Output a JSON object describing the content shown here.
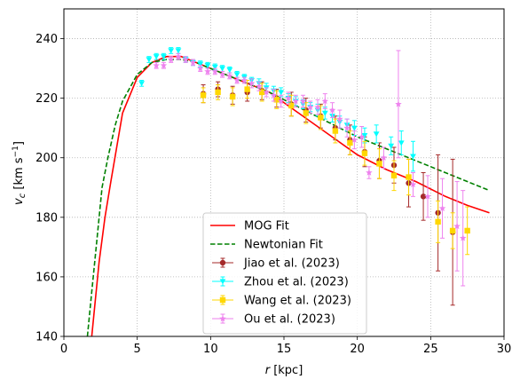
{
  "chart_data": {
    "type": "scatter",
    "title": "",
    "xlabel": "r [kpc]",
    "ylabel": "v_c [km s^-1]",
    "xlim": [
      0,
      30
    ],
    "ylim": [
      140,
      250
    ],
    "xticks": [
      0,
      5,
      10,
      15,
      20,
      25,
      30
    ],
    "yticks": [
      140,
      160,
      180,
      200,
      220,
      240
    ],
    "grid": true,
    "legend_position": "lower-center",
    "curves": [
      {
        "name": "MOG Fit",
        "color": "#ff0000",
        "style": "solid",
        "x": [
          1.9,
          2.1,
          2.4,
          2.8,
          3.2,
          4.0,
          5.0,
          6.0,
          7.0,
          8.0,
          9.0,
          10.0,
          12.0,
          14.0,
          16.0,
          18.0,
          20.0,
          22.0,
          24.0,
          26.0,
          27.5,
          29.0
        ],
        "y": [
          140,
          150,
          165,
          180,
          192,
          215,
          227,
          232,
          234,
          234,
          232,
          230,
          226,
          222,
          215,
          208,
          201,
          196,
          192,
          187,
          184,
          181.5
        ]
      },
      {
        "name": "Newtonian Fit",
        "color": "#008000",
        "style": "dashed",
        "x": [
          1.6,
          1.9,
          2.2,
          2.6,
          3.0,
          3.5,
          4.0,
          5.0,
          6.0,
          7.0,
          8.0,
          9.0,
          10.0,
          12.0,
          14.0,
          16.0,
          18.0,
          20.0,
          22.0,
          24.0,
          26.0,
          28.0,
          29.0
        ],
        "y": [
          140,
          155,
          170,
          190,
          200,
          211,
          219,
          228,
          232,
          233,
          233,
          232,
          230,
          226,
          222,
          217,
          212,
          207,
          203,
          199,
          195,
          191,
          189
        ]
      }
    ],
    "series": [
      {
        "name": "Jiao et al. (2023)",
        "color": "#a52a2a",
        "marker": "circle",
        "points": [
          {
            "x": 9.5,
            "y": 221.5,
            "err": 3
          },
          {
            "x": 10.5,
            "y": 223,
            "err": 2.5
          },
          {
            "x": 11.5,
            "y": 221,
            "err": 3
          },
          {
            "x": 12.5,
            "y": 222,
            "err": 3
          },
          {
            "x": 13.5,
            "y": 222.5,
            "err": 3
          },
          {
            "x": 14.5,
            "y": 220,
            "err": 3
          },
          {
            "x": 15.5,
            "y": 218,
            "err": 4
          },
          {
            "x": 16.5,
            "y": 216,
            "err": 4
          },
          {
            "x": 17.5,
            "y": 214,
            "err": 4
          },
          {
            "x": 18.5,
            "y": 210,
            "err": 4
          },
          {
            "x": 19.5,
            "y": 206,
            "err": 5
          },
          {
            "x": 20.5,
            "y": 202,
            "err": 5
          },
          {
            "x": 21.5,
            "y": 199,
            "err": 6
          },
          {
            "x": 22.5,
            "y": 197.5,
            "err": 6
          },
          {
            "x": 23.5,
            "y": 191.5,
            "err": 8
          },
          {
            "x": 24.5,
            "y": 187,
            "err": 8
          },
          {
            "x": 25.5,
            "y": 181.5,
            "err": 19.5
          },
          {
            "x": 26.5,
            "y": 175,
            "err": 24.5
          }
        ]
      },
      {
        "name": "Zhou et al. (2023)",
        "color": "#00ffff",
        "marker": "triangle-down",
        "points": [
          {
            "x": 5.3,
            "y": 225,
            "err": 1
          },
          {
            "x": 5.8,
            "y": 233,
            "err": 1
          },
          {
            "x": 6.3,
            "y": 234,
            "err": 1
          },
          {
            "x": 6.8,
            "y": 234,
            "err": 1
          },
          {
            "x": 7.3,
            "y": 236,
            "err": 1
          },
          {
            "x": 7.8,
            "y": 236,
            "err": 1
          },
          {
            "x": 8.3,
            "y": 233,
            "err": 1
          },
          {
            "x": 8.8,
            "y": 232,
            "err": 1
          },
          {
            "x": 9.3,
            "y": 231.5,
            "err": 1
          },
          {
            "x": 9.8,
            "y": 231,
            "err": 1
          },
          {
            "x": 10.3,
            "y": 230.5,
            "err": 1
          },
          {
            "x": 10.8,
            "y": 230,
            "err": 1
          },
          {
            "x": 11.3,
            "y": 229.5,
            "err": 1
          },
          {
            "x": 11.8,
            "y": 228,
            "err": 1
          },
          {
            "x": 12.3,
            "y": 227,
            "err": 1
          },
          {
            "x": 12.8,
            "y": 226,
            "err": 1
          },
          {
            "x": 13.3,
            "y": 225,
            "err": 1.5
          },
          {
            "x": 13.8,
            "y": 223.5,
            "err": 1.5
          },
          {
            "x": 14.3,
            "y": 222.5,
            "err": 1.5
          },
          {
            "x": 14.8,
            "y": 222,
            "err": 1.5
          },
          {
            "x": 15.3,
            "y": 220,
            "err": 1.5
          },
          {
            "x": 15.8,
            "y": 219,
            "err": 1.5
          },
          {
            "x": 16.3,
            "y": 218,
            "err": 1.5
          },
          {
            "x": 16.8,
            "y": 217,
            "err": 1.5
          },
          {
            "x": 17.3,
            "y": 216,
            "err": 2
          },
          {
            "x": 17.8,
            "y": 215,
            "err": 2
          },
          {
            "x": 18.3,
            "y": 214,
            "err": 2
          },
          {
            "x": 18.8,
            "y": 212,
            "err": 2
          },
          {
            "x": 19.3,
            "y": 211,
            "err": 2
          },
          {
            "x": 19.8,
            "y": 210,
            "err": 2.5
          },
          {
            "x": 20.5,
            "y": 207.5,
            "err": 2.5
          },
          {
            "x": 21.3,
            "y": 208,
            "err": 3
          },
          {
            "x": 22.3,
            "y": 204,
            "err": 3
          },
          {
            "x": 23.0,
            "y": 205,
            "err": 4
          },
          {
            "x": 23.8,
            "y": 200.5,
            "err": 5
          }
        ]
      },
      {
        "name": "Wang et al. (2023)",
        "color": "#ffd700",
        "marker": "square",
        "points": [
          {
            "x": 9.5,
            "y": 221,
            "err": 2.5
          },
          {
            "x": 10.5,
            "y": 222,
            "err": 2.5
          },
          {
            "x": 11.5,
            "y": 220.5,
            "err": 3
          },
          {
            "x": 12.5,
            "y": 223,
            "err": 3
          },
          {
            "x": 13.5,
            "y": 222,
            "err": 3
          },
          {
            "x": 14.5,
            "y": 219.5,
            "err": 3
          },
          {
            "x": 15.5,
            "y": 217.5,
            "err": 3.5
          },
          {
            "x": 16.5,
            "y": 215,
            "err": 3.5
          },
          {
            "x": 17.5,
            "y": 213.5,
            "err": 4
          },
          {
            "x": 18.5,
            "y": 209,
            "err": 4
          },
          {
            "x": 19.5,
            "y": 205,
            "err": 4
          },
          {
            "x": 20.5,
            "y": 201.5,
            "err": 4
          },
          {
            "x": 21.5,
            "y": 198,
            "err": 5
          },
          {
            "x": 22.5,
            "y": 194,
            "err": 5
          },
          {
            "x": 23.5,
            "y": 193.5,
            "err": 6
          },
          {
            "x": 25.5,
            "y": 178.5,
            "err": 7
          },
          {
            "x": 26.5,
            "y": 175.5,
            "err": 6
          },
          {
            "x": 27.5,
            "y": 175.5,
            "err": 8
          }
        ]
      },
      {
        "name": "Ou et al. (2023)",
        "color": "#ee82ee",
        "marker": "star",
        "points": [
          {
            "x": 6.3,
            "y": 231,
            "err": 1
          },
          {
            "x": 6.8,
            "y": 231,
            "err": 1
          },
          {
            "x": 7.3,
            "y": 233,
            "err": 1
          },
          {
            "x": 7.8,
            "y": 234,
            "err": 1
          },
          {
            "x": 8.3,
            "y": 233,
            "err": 1
          },
          {
            "x": 8.8,
            "y": 232,
            "err": 1
          },
          {
            "x": 9.3,
            "y": 230,
            "err": 1
          },
          {
            "x": 9.8,
            "y": 229,
            "err": 1
          },
          {
            "x": 10.3,
            "y": 229,
            "err": 1
          },
          {
            "x": 10.8,
            "y": 228,
            "err": 1
          },
          {
            "x": 11.3,
            "y": 227.5,
            "err": 1
          },
          {
            "x": 11.8,
            "y": 226,
            "err": 1
          },
          {
            "x": 12.3,
            "y": 226,
            "err": 1
          },
          {
            "x": 12.8,
            "y": 225,
            "err": 1.5
          },
          {
            "x": 13.3,
            "y": 224,
            "err": 1.5
          },
          {
            "x": 13.8,
            "y": 222,
            "err": 1.5
          },
          {
            "x": 14.3,
            "y": 221,
            "err": 2
          },
          {
            "x": 14.8,
            "y": 219,
            "err": 2
          },
          {
            "x": 15.3,
            "y": 220,
            "err": 2
          },
          {
            "x": 15.8,
            "y": 219,
            "err": 2
          },
          {
            "x": 16.3,
            "y": 219,
            "err": 2
          },
          {
            "x": 16.8,
            "y": 217,
            "err": 2
          },
          {
            "x": 17.3,
            "y": 217,
            "err": 2.5
          },
          {
            "x": 17.8,
            "y": 219,
            "err": 2.5
          },
          {
            "x": 18.3,
            "y": 216,
            "err": 2.5
          },
          {
            "x": 18.8,
            "y": 213,
            "err": 3
          },
          {
            "x": 19.3,
            "y": 210,
            "err": 3
          },
          {
            "x": 19.8,
            "y": 206,
            "err": 3
          },
          {
            "x": 20.3,
            "y": 207,
            "err": 3.5
          },
          {
            "x": 20.8,
            "y": 195,
            "err": 2
          },
          {
            "x": 21.8,
            "y": 200,
            "err": 3.5
          },
          {
            "x": 22.8,
            "y": 218,
            "err": 18
          },
          {
            "x": 23.8,
            "y": 191,
            "err": 4
          },
          {
            "x": 24.8,
            "y": 187,
            "err": 7
          },
          {
            "x": 25.8,
            "y": 183,
            "err": 10
          },
          {
            "x": 26.8,
            "y": 177,
            "err": 15
          },
          {
            "x": 27.2,
            "y": 173,
            "err": 16
          }
        ]
      }
    ]
  }
}
